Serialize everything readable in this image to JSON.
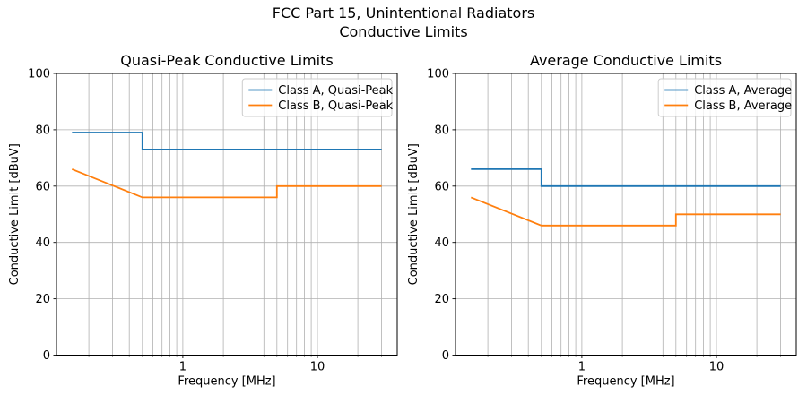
{
  "figure": {
    "title_line1": "FCC Part 15, Unintentional Radiators",
    "title_line2": "Conductive Limits"
  },
  "style": {
    "background": "#ffffff",
    "grid_color": "#b0b0b0",
    "spine_color": "#000000",
    "text_color": "#000000",
    "legend_border_color": "#cccccc",
    "class_a_color": "#1f77b4",
    "class_b_color": "#ff7f0e"
  },
  "chart_data": [
    {
      "id": "quasi-peak",
      "type": "line",
      "title": "Quasi-Peak Conductive Limits",
      "xlabel": "Frequency [MHz]",
      "ylabel": "Conductive Limit [dBuV]",
      "xscale": "log",
      "xlim": [
        0.115,
        39.2
      ],
      "ylim": [
        0,
        100
      ],
      "yticks": [
        0,
        20,
        40,
        60,
        80,
        100
      ],
      "xticks_major": [
        1,
        10
      ],
      "xtick_labels": [
        "1",
        "10"
      ],
      "xticks_minor": [
        0.2,
        0.3,
        0.4,
        0.5,
        0.6,
        0.7,
        0.8,
        0.9,
        2,
        3,
        4,
        5,
        6,
        7,
        8,
        9,
        20,
        30
      ],
      "grid": true,
      "legend_location": "upper right",
      "legend": [
        "Class A, Quasi-Peak",
        "Class B, Quasi-Peak"
      ],
      "series": [
        {
          "name": "Class A, Quasi-Peak",
          "color": "#1f77b4",
          "x": [
            0.15,
            0.5,
            0.5,
            30
          ],
          "y": [
            79,
            79,
            73,
            73
          ]
        },
        {
          "name": "Class B, Quasi-Peak",
          "color": "#ff7f0e",
          "x": [
            0.15,
            0.5,
            5,
            5,
            30
          ],
          "y": [
            66,
            56,
            56,
            60,
            60
          ]
        }
      ]
    },
    {
      "id": "average",
      "type": "line",
      "title": "Average Conductive Limits",
      "xlabel": "Frequency [MHz]",
      "ylabel": "Conductive Limit [dBuV]",
      "xscale": "log",
      "xlim": [
        0.115,
        39.2
      ],
      "ylim": [
        0,
        100
      ],
      "yticks": [
        0,
        20,
        40,
        60,
        80,
        100
      ],
      "xticks_major": [
        1,
        10
      ],
      "xtick_labels": [
        "1",
        "10"
      ],
      "xticks_minor": [
        0.2,
        0.3,
        0.4,
        0.5,
        0.6,
        0.7,
        0.8,
        0.9,
        2,
        3,
        4,
        5,
        6,
        7,
        8,
        9,
        20,
        30
      ],
      "grid": true,
      "legend_location": "upper right",
      "legend": [
        "Class A, Average",
        "Class B, Average"
      ],
      "series": [
        {
          "name": "Class A, Average",
          "color": "#1f77b4",
          "x": [
            0.15,
            0.5,
            0.5,
            30
          ],
          "y": [
            66,
            66,
            60,
            60
          ]
        },
        {
          "name": "Class B, Average",
          "color": "#ff7f0e",
          "x": [
            0.15,
            0.5,
            5,
            5,
            30
          ],
          "y": [
            56,
            46,
            46,
            50,
            50
          ]
        }
      ]
    }
  ]
}
